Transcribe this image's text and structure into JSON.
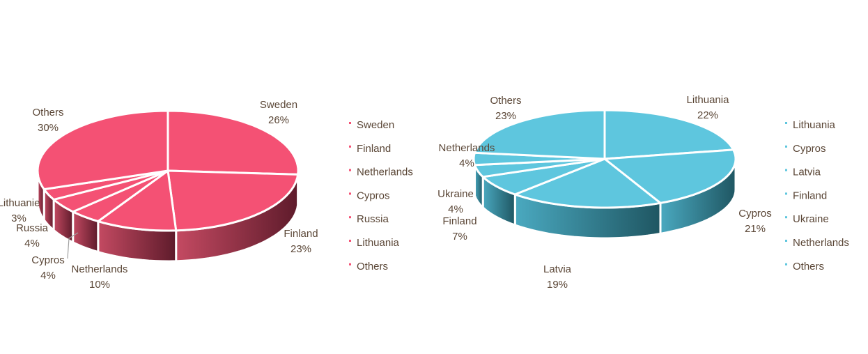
{
  "chart_data": [
    {
      "type": "pie",
      "style": "3d-exploded-depth",
      "color": "#f45174",
      "side_color_light": "#c44a62",
      "side_color_dark": "#5e1b2b",
      "legend_position": "right",
      "slices": [
        {
          "label": "Sweden",
          "pct_label": "26%",
          "value": 26
        },
        {
          "label": "Finland",
          "pct_label": "23%",
          "value": 23
        },
        {
          "label": "Netherlands",
          "pct_label": "10%",
          "value": 10
        },
        {
          "label": "Cypros",
          "pct_label": "4%",
          "value": 4
        },
        {
          "label": "Russia",
          "pct_label": "4%",
          "value": 4
        },
        {
          "label": "Lithuania",
          "pct_label": "3%",
          "value": 3
        },
        {
          "label": "Others",
          "pct_label": "30%",
          "value": 30
        }
      ],
      "legend": [
        "Sweden",
        "Finland",
        "Netherlands",
        "Cypros",
        "Russia",
        "Lithuania",
        "Others"
      ],
      "data_labels": [
        {
          "name": "Sweden",
          "pct": "26%"
        },
        {
          "name": "Finland",
          "pct": "23%"
        },
        {
          "name": "Netherlands",
          "pct": "10%"
        },
        {
          "name": "Cypros",
          "pct": "4%"
        },
        {
          "name": "Russia",
          "pct": "4%"
        },
        {
          "name": "Lithuanie",
          "pct": "3%"
        },
        {
          "name": "Others",
          "pct": "30%"
        }
      ]
    },
    {
      "type": "pie",
      "style": "3d-exploded-depth",
      "color": "#5ec6de",
      "side_color_light": "#4aa9c0",
      "side_color_dark": "#1f5662",
      "legend_position": "right",
      "slices": [
        {
          "label": "Lithuania",
          "pct_label": "22%",
          "value": 22
        },
        {
          "label": "Cypros",
          "pct_label": "21%",
          "value": 21
        },
        {
          "label": "Latvia",
          "pct_label": "19%",
          "value": 19
        },
        {
          "label": "Finland",
          "pct_label": "7%",
          "value": 7
        },
        {
          "label": "Ukraine",
          "pct_label": "4%",
          "value": 4
        },
        {
          "label": "Netherlands",
          "pct_label": "4%",
          "value": 4
        },
        {
          "label": "Others",
          "pct_label": "23%",
          "value": 23
        }
      ],
      "legend": [
        "Lithuania",
        "Cypros",
        "Latvia",
        "Finland",
        "Ukraine",
        "Netherlands",
        "Others"
      ],
      "data_labels": [
        {
          "name": "Lithuania",
          "pct": "22%"
        },
        {
          "name": "Cypros",
          "pct": "21%"
        },
        {
          "name": "Latvia",
          "pct": "19%"
        },
        {
          "name": "Finland",
          "pct": "7%"
        },
        {
          "name": "Ukraine",
          "pct": "4%"
        },
        {
          "name": "Netherlands",
          "pct": "4%"
        },
        {
          "name": "Others",
          "pct": "23%"
        }
      ]
    }
  ]
}
